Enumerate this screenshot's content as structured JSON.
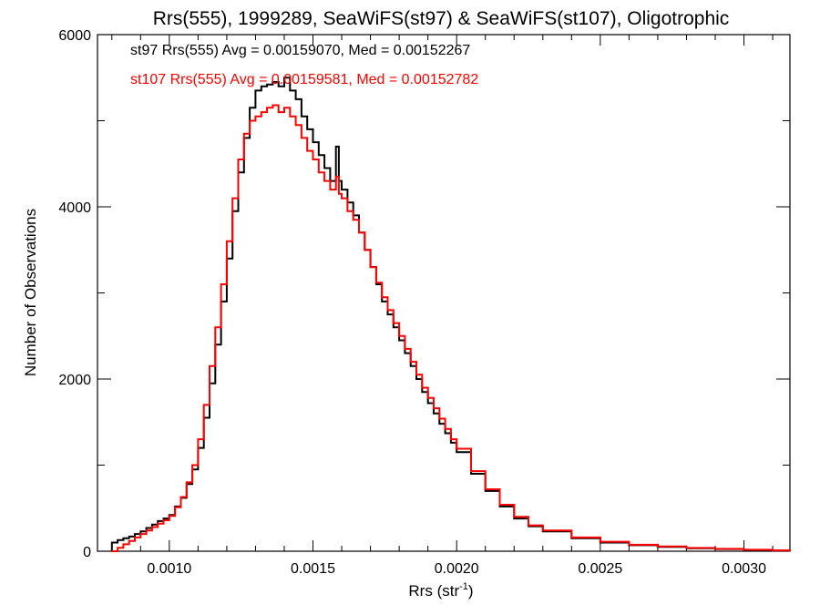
{
  "chart_data": {
    "type": "line",
    "title": "Rrs(555), 1999289, SeaWiFS(st97) & SeaWiFS(st107), Oligotrophic",
    "xlabel_main": "Rrs (str",
    "xlabel_sup": "-1",
    "xlabel_end": ")",
    "ylabel": "Number of Observations",
    "xlim": [
      0.00075,
      0.00316
    ],
    "ylim": [
      0,
      6000
    ],
    "x_major_ticks": [
      0.001,
      0.0015,
      0.002,
      0.0025,
      0.003
    ],
    "x_tick_labels": [
      "0.0010",
      "0.0015",
      "0.0020",
      "0.0025",
      "0.0030"
    ],
    "x_minor_step": 0.0001,
    "y_major_ticks": [
      0,
      2000,
      4000,
      6000
    ],
    "y_tick_labels": [
      "0",
      "2000",
      "4000",
      "6000"
    ],
    "y_minor_step": 1000,
    "grid": false,
    "legend_position": "top-left",
    "series": [
      {
        "name": "st97 Rrs(555) Avg = 0.00159070, Med = 0.00152267",
        "color": "#000000",
        "x": [
          0.0008,
          0.00082,
          0.00084,
          0.00086,
          0.00088,
          0.0009,
          0.00092,
          0.00094,
          0.00096,
          0.00098,
          0.001,
          0.00102,
          0.00104,
          0.00106,
          0.00108,
          0.0011,
          0.00112,
          0.00114,
          0.00116,
          0.00118,
          0.0012,
          0.00122,
          0.00124,
          0.00126,
          0.00128,
          0.0013,
          0.00132,
          0.00134,
          0.00136,
          0.00138,
          0.0014,
          0.00142,
          0.00144,
          0.00146,
          0.00148,
          0.0015,
          0.00152,
          0.00154,
          0.00156,
          0.00158,
          0.00159,
          0.0016,
          0.00162,
          0.00164,
          0.00166,
          0.00168,
          0.0017,
          0.00172,
          0.00174,
          0.00176,
          0.00178,
          0.0018,
          0.00182,
          0.00184,
          0.00186,
          0.00188,
          0.0019,
          0.00192,
          0.00194,
          0.00196,
          0.00198,
          0.002,
          0.00205,
          0.0021,
          0.00215,
          0.0022,
          0.00225,
          0.0023,
          0.0024,
          0.0025,
          0.0026,
          0.0027,
          0.0028,
          0.0029,
          0.003,
          0.0031,
          0.00316
        ],
        "y": [
          100,
          130,
          150,
          170,
          200,
          230,
          270,
          310,
          350,
          380,
          420,
          520,
          620,
          780,
          950,
          1200,
          1550,
          1950,
          2400,
          2900,
          3400,
          3950,
          4400,
          4800,
          5150,
          5350,
          5400,
          5420,
          5450,
          5400,
          5500,
          5350,
          5250,
          5050,
          4900,
          4750,
          4600,
          4450,
          4300,
          4700,
          4300,
          4200,
          4050,
          3900,
          3700,
          3500,
          3300,
          3100,
          2900,
          2750,
          2600,
          2450,
          2300,
          2150,
          2000,
          1850,
          1720,
          1600,
          1480,
          1370,
          1260,
          1150,
          900,
          700,
          520,
          380,
          290,
          230,
          150,
          100,
          70,
          50,
          35,
          25,
          15,
          8,
          0
        ]
      },
      {
        "name": "st107 Rrs(555) Avg = 0.00159581, Med = 0.00152782",
        "color": "#ff0000",
        "x": [
          0.0008,
          0.00082,
          0.00084,
          0.00086,
          0.00088,
          0.0009,
          0.00092,
          0.00094,
          0.00096,
          0.00098,
          0.001,
          0.00102,
          0.00104,
          0.00106,
          0.00108,
          0.0011,
          0.00112,
          0.00114,
          0.00116,
          0.00118,
          0.0012,
          0.00122,
          0.00124,
          0.00126,
          0.00128,
          0.0013,
          0.00132,
          0.00134,
          0.00136,
          0.00138,
          0.0014,
          0.00142,
          0.00144,
          0.00146,
          0.00148,
          0.0015,
          0.00152,
          0.00154,
          0.00156,
          0.00158,
          0.00159,
          0.0016,
          0.00162,
          0.00164,
          0.00166,
          0.00168,
          0.0017,
          0.00172,
          0.00174,
          0.00176,
          0.00178,
          0.0018,
          0.00182,
          0.00184,
          0.00186,
          0.00188,
          0.0019,
          0.00192,
          0.00194,
          0.00196,
          0.00198,
          0.002,
          0.00205,
          0.0021,
          0.00215,
          0.0022,
          0.00225,
          0.0023,
          0.0024,
          0.0025,
          0.0026,
          0.0027,
          0.0028,
          0.0029,
          0.003,
          0.0031,
          0.00316
        ],
        "y": [
          0,
          40,
          80,
          120,
          160,
          200,
          240,
          280,
          320,
          360,
          410,
          510,
          630,
          800,
          1000,
          1300,
          1700,
          2150,
          2600,
          3100,
          3600,
          4100,
          4550,
          4850,
          5000,
          5050,
          5100,
          5150,
          5180,
          5100,
          5150,
          5050,
          4950,
          4800,
          4650,
          4550,
          4400,
          4300,
          4200,
          4350,
          4150,
          4100,
          3950,
          3850,
          3700,
          3500,
          3300,
          3120,
          2950,
          2800,
          2650,
          2500,
          2350,
          2200,
          2050,
          1900,
          1780,
          1660,
          1540,
          1420,
          1300,
          1190,
          930,
          720,
          540,
          400,
          300,
          240,
          160,
          110,
          75,
          55,
          38,
          27,
          17,
          9,
          0
        ]
      }
    ]
  }
}
